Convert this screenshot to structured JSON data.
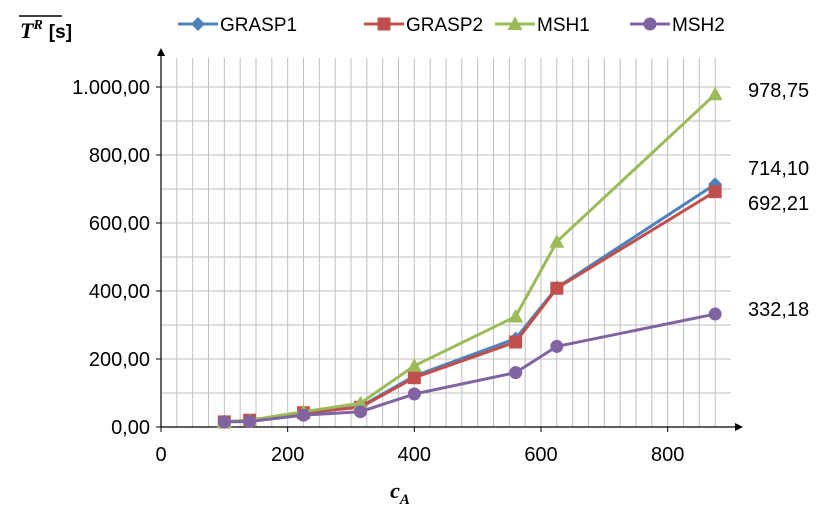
{
  "chart_data": {
    "type": "line",
    "ylabel": "T",
    "ylabel_superscript": "R",
    "ylabel_unit": "[s]",
    "xlabel": "c",
    "xlabel_subscript": "A",
    "xlim": [
      0,
      900
    ],
    "ylim": [
      0,
      1000
    ],
    "x_ticks": [
      0,
      200,
      400,
      600,
      800
    ],
    "x_tick_labels": [
      "0",
      "200",
      "400",
      "600",
      "800"
    ],
    "y_ticks": [
      0,
      200,
      400,
      600,
      800,
      1000
    ],
    "y_tick_labels": [
      "0,00",
      "200,00",
      "400,00",
      "600,00",
      "800,00",
      "1.000,00"
    ],
    "grid": true,
    "legend_position": "top",
    "x": [
      100,
      140,
      225,
      315,
      400,
      560,
      625,
      875
    ],
    "series": [
      {
        "name": "GRASP1",
        "color": "#4f81bd",
        "marker": "diamond",
        "values": [
          15,
          20,
          40,
          60,
          150,
          260,
          410,
          714.1
        ]
      },
      {
        "name": "GRASP2",
        "color": "#c0504d",
        "marker": "square",
        "values": [
          15,
          20,
          42,
          58,
          145,
          250,
          408,
          692.21
        ]
      },
      {
        "name": "MSH1",
        "color": "#9bbb59",
        "marker": "triangle",
        "values": [
          15,
          20,
          45,
          70,
          180,
          325,
          545,
          978.75
        ]
      },
      {
        "name": "MSH2",
        "color": "#8064a2",
        "marker": "circle",
        "values": [
          15,
          16,
          35,
          45,
          97,
          160,
          237,
          332.18
        ]
      }
    ],
    "end_labels": [
      "978,75",
      "714,10",
      "692,21",
      "332,18"
    ]
  }
}
